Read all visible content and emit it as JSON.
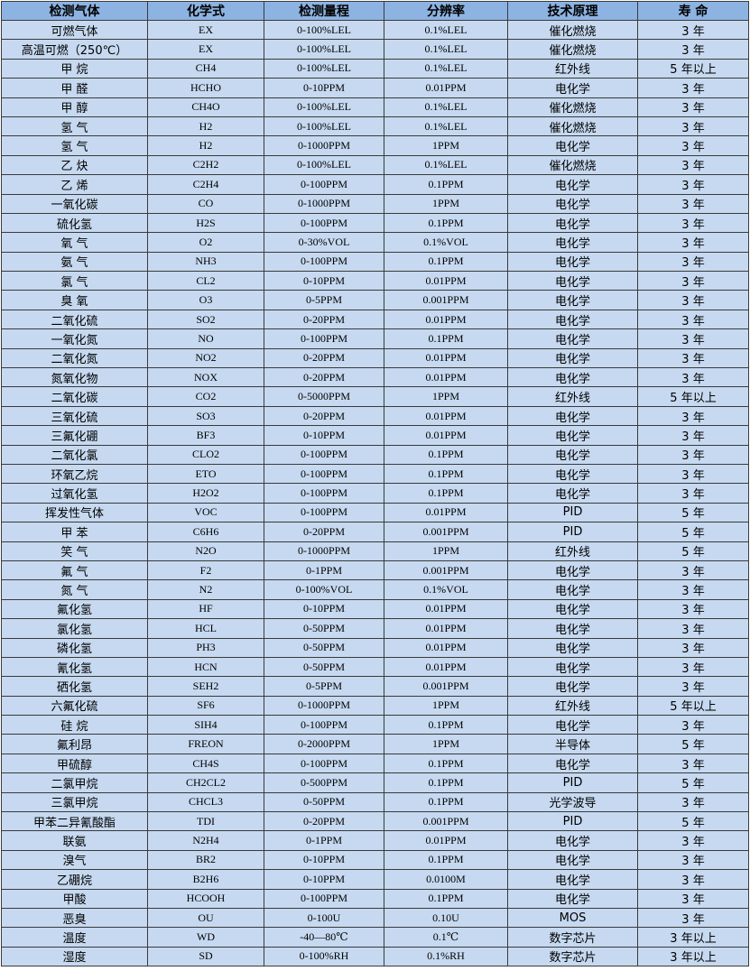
{
  "table": {
    "headers": [
      "检测气体",
      "化学式",
      "检测量程",
      "分辨率",
      "技术原理",
      "寿 命"
    ],
    "rows": [
      [
        "可燃气体",
        "EX",
        "0-100%LEL",
        "0.1%LEL",
        "催化燃烧",
        "3 年"
      ],
      [
        "高温可燃（250℃）",
        "EX",
        "0-100%LEL",
        "0.1%LEL",
        "催化燃烧",
        "3 年"
      ],
      [
        "甲 烷",
        "CH4",
        "0-100%LEL",
        "0.1%LEL",
        "红外线",
        "5 年以上"
      ],
      [
        "甲 醛",
        "HCHO",
        "0-10PPM",
        "0.01PPM",
        "电化学",
        "3 年"
      ],
      [
        "甲 醇",
        "CH4O",
        "0-100%LEL",
        "0.1%LEL",
        "催化燃烧",
        "3 年"
      ],
      [
        "氢 气",
        "H2",
        "0-100%LEL",
        "0.1%LEL",
        "催化燃烧",
        "3 年"
      ],
      [
        "氢 气",
        "H2",
        "0-1000PPM",
        "1PPM",
        "电化学",
        "3 年"
      ],
      [
        "乙 炔",
        "C2H2",
        "0-100%LEL",
        "0.1%LEL",
        "催化燃烧",
        "3 年"
      ],
      [
        "乙 烯",
        "C2H4",
        "0-100PPM",
        "0.1PPM",
        "电化学",
        "3 年"
      ],
      [
        "一氧化碳",
        "CO",
        "0-1000PPM",
        "1PPM",
        "电化学",
        "3 年"
      ],
      [
        "硫化氢",
        "H2S",
        "0-100PPM",
        "0.1PPM",
        "电化学",
        "3 年"
      ],
      [
        "氧 气",
        "O2",
        "0-30%VOL",
        "0.1%VOL",
        "电化学",
        "3 年"
      ],
      [
        "氨 气",
        "NH3",
        "0-100PPM",
        "0.1PPM",
        "电化学",
        "3 年"
      ],
      [
        "氯 气",
        "CL2",
        "0-10PPM",
        "0.01PPM",
        "电化学",
        "3 年"
      ],
      [
        "臭 氧",
        "O3",
        "0-5PPM",
        "0.001PPM",
        "电化学",
        "3 年"
      ],
      [
        "二氧化硫",
        "SO2",
        "0-20PPM",
        "0.01PPM",
        "电化学",
        "3 年"
      ],
      [
        "一氧化氮",
        "NO",
        "0-100PPM",
        "0.1PPM",
        "电化学",
        "3 年"
      ],
      [
        "二氧化氮",
        "NO2",
        "0-20PPM",
        "0.01PPM",
        "电化学",
        "3 年"
      ],
      [
        "氮氧化物",
        "NOX",
        "0-20PPM",
        "0.01PPM",
        "电化学",
        "3 年"
      ],
      [
        "二氧化碳",
        "CO2",
        "0-5000PPM",
        "1PPM",
        "红外线",
        "5 年以上"
      ],
      [
        "三氧化硫",
        "SO3",
        "0-20PPM",
        "0.01PPM",
        "电化学",
        "3 年"
      ],
      [
        "三氟化硼",
        "BF3",
        "0-10PPM",
        "0.01PPM",
        "电化学",
        "3 年"
      ],
      [
        "二氧化氯",
        "CLO2",
        "0-100PPM",
        "0.1PPM",
        "电化学",
        "3 年"
      ],
      [
        "环氧乙烷",
        "ETO",
        "0-100PPM",
        "0.1PPM",
        "电化学",
        "3 年"
      ],
      [
        "过氧化氢",
        "H2O2",
        "0-100PPM",
        "0.1PPM",
        "电化学",
        "3 年"
      ],
      [
        "挥发性气体",
        "VOC",
        "0-100PPM",
        "0.01PPM",
        "PID",
        "5 年"
      ],
      [
        "甲 苯",
        "C6H6",
        "0-20PPM",
        "0.001PPM",
        "PID",
        "5 年"
      ],
      [
        "笑 气",
        "N2O",
        "0-1000PPM",
        "1PPM",
        "红外线",
        "5 年"
      ],
      [
        "氟 气",
        "F2",
        "0-1PPM",
        "0.001PPM",
        "电化学",
        "3 年"
      ],
      [
        "氮 气",
        "N2",
        "0-100%VOL",
        "0.1%VOL",
        "电化学",
        "3 年"
      ],
      [
        "氟化氢",
        "HF",
        "0-10PPM",
        "0.01PPM",
        "电化学",
        "3 年"
      ],
      [
        "氯化氢",
        "HCL",
        "0-50PPM",
        "0.01PPM",
        "电化学",
        "3 年"
      ],
      [
        "磷化氢",
        "PH3",
        "0-50PPM",
        "0.01PPM",
        "电化学",
        "3 年"
      ],
      [
        "氰化氢",
        "HCN",
        "0-50PPM",
        "0.01PPM",
        "电化学",
        "3 年"
      ],
      [
        "硒化氢",
        "SEH2",
        "0-5PPM",
        "0.001PPM",
        "电化学",
        "3 年"
      ],
      [
        "六氟化硫",
        "SF6",
        "0-1000PPM",
        "1PPM",
        "红外线",
        "5 年以上"
      ],
      [
        "硅 烷",
        "SIH4",
        "0-100PPM",
        "0.1PPM",
        "电化学",
        "3 年"
      ],
      [
        "氟利昂",
        "FREON",
        "0-2000PPM",
        "1PPM",
        "半导体",
        "5 年"
      ],
      [
        "甲硫醇",
        "CH4S",
        "0-100PPM",
        "0.1PPM",
        "电化学",
        "3 年"
      ],
      [
        "二氯甲烷",
        "CH2CL2",
        "0-500PPM",
        "0.1PPM",
        "PID",
        "5 年"
      ],
      [
        "三氯甲烷",
        "CHCL3",
        "0-50PPM",
        "0.1PPM",
        "光学波导",
        "3 年"
      ],
      [
        "甲苯二异氰酸酯",
        "TDI",
        "0-20PPM",
        "0.001PPM",
        "PID",
        "5 年"
      ],
      [
        "联氨",
        "N2H4",
        "0-1PPM",
        "0.01PPM",
        "电化学",
        "3 年"
      ],
      [
        "溴气",
        "BR2",
        "0-10PPM",
        "0.1PPM",
        "电化学",
        "3 年"
      ],
      [
        "乙硼烷",
        "B2H6",
        "0-10PPM",
        "0.0100M",
        "电化学",
        "3 年"
      ],
      [
        "甲酸",
        "HCOOH",
        "0-100PPM",
        "0.1PPM",
        "电化学",
        "3 年"
      ],
      [
        "恶臭",
        "OU",
        "0-100U",
        "0.10U",
        "MOS",
        "3 年"
      ],
      [
        "温度",
        "WD",
        "-40—80℃",
        "0.1℃",
        "数字芯片",
        "3 年以上"
      ],
      [
        "湿度",
        "SD",
        "0-100%RH",
        "0.1%RH",
        "数字芯片",
        "3 年以上"
      ]
    ]
  },
  "colors": {
    "header": "#8db3e2",
    "body": "#c6d9f0",
    "border": "#3a3a3a"
  }
}
